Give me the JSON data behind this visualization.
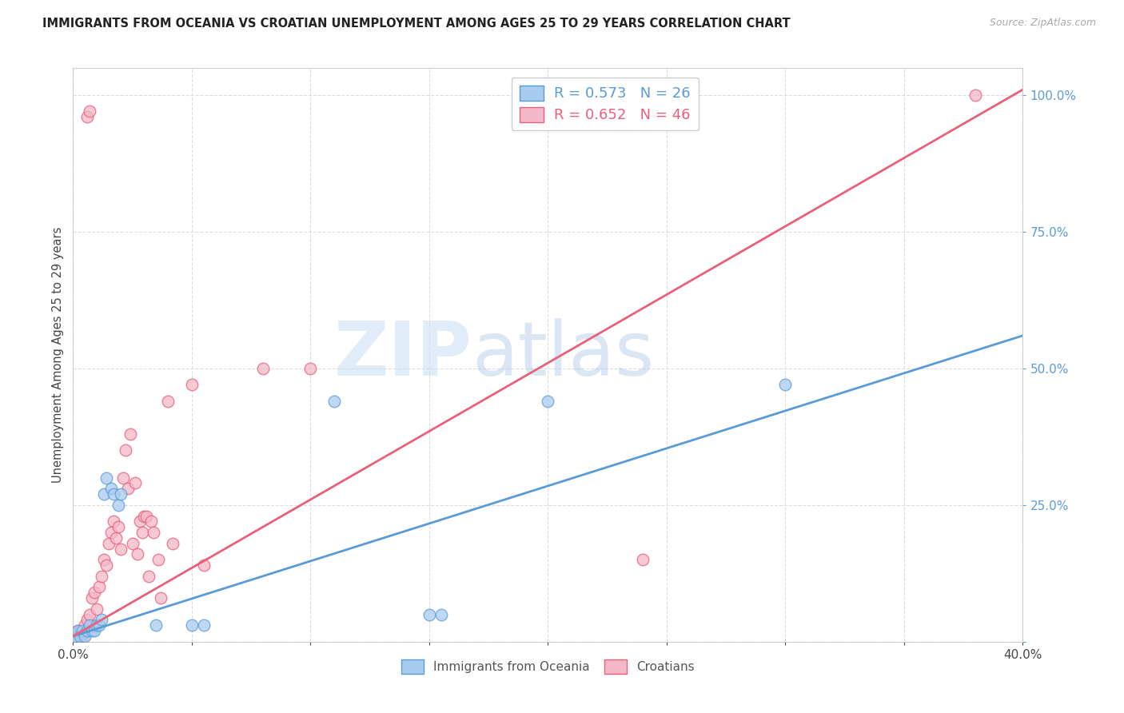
{
  "title": "IMMIGRANTS FROM OCEANIA VS CROATIAN UNEMPLOYMENT AMONG AGES 25 TO 29 YEARS CORRELATION CHART",
  "source": "Source: ZipAtlas.com",
  "ylabel": "Unemployment Among Ages 25 to 29 years",
  "xlim": [
    0.0,
    0.4
  ],
  "ylim": [
    0.0,
    1.05
  ],
  "ytick_vals": [
    0.0,
    0.25,
    0.5,
    0.75,
    1.0
  ],
  "ytick_labels": [
    "",
    "25.0%",
    "50.0%",
    "75.0%",
    "100.0%"
  ],
  "xtick_vals": [
    0.0,
    0.05,
    0.1,
    0.15,
    0.2,
    0.25,
    0.3,
    0.35,
    0.4
  ],
  "xtick_labels": [
    "0.0%",
    "",
    "",
    "",
    "",
    "",
    "",
    "",
    "40.0%"
  ],
  "watermark_zip": "ZIP",
  "watermark_atlas": "atlas",
  "legend_blue_label": "R = 0.573   N = 26",
  "legend_pink_label": "R = 0.652   N = 46",
  "legend_bottom_blue": "Immigrants from Oceania",
  "legend_bottom_pink": "Croatians",
  "blue_fill": "#a8ccf0",
  "pink_fill": "#f5b8c8",
  "blue_edge": "#5b9bd5",
  "pink_edge": "#e8607a",
  "blue_line": "#5b9bd5",
  "pink_line": "#e8607a",
  "blue_scatter": [
    [
      0.001,
      0.01
    ],
    [
      0.002,
      0.02
    ],
    [
      0.003,
      0.01
    ],
    [
      0.004,
      0.02
    ],
    [
      0.005,
      0.01
    ],
    [
      0.006,
      0.02
    ],
    [
      0.007,
      0.03
    ],
    [
      0.008,
      0.02
    ],
    [
      0.009,
      0.02
    ],
    [
      0.01,
      0.03
    ],
    [
      0.011,
      0.03
    ],
    [
      0.012,
      0.04
    ],
    [
      0.013,
      0.27
    ],
    [
      0.014,
      0.3
    ],
    [
      0.016,
      0.28
    ],
    [
      0.017,
      0.27
    ],
    [
      0.019,
      0.25
    ],
    [
      0.02,
      0.27
    ],
    [
      0.035,
      0.03
    ],
    [
      0.05,
      0.03
    ],
    [
      0.055,
      0.03
    ],
    [
      0.11,
      0.44
    ],
    [
      0.15,
      0.05
    ],
    [
      0.155,
      0.05
    ],
    [
      0.2,
      0.44
    ],
    [
      0.3,
      0.47
    ]
  ],
  "pink_scatter": [
    [
      0.001,
      0.01
    ],
    [
      0.002,
      0.02
    ],
    [
      0.003,
      0.02
    ],
    [
      0.004,
      0.01
    ],
    [
      0.005,
      0.03
    ],
    [
      0.006,
      0.04
    ],
    [
      0.007,
      0.05
    ],
    [
      0.008,
      0.08
    ],
    [
      0.009,
      0.09
    ],
    [
      0.01,
      0.06
    ],
    [
      0.011,
      0.1
    ],
    [
      0.012,
      0.12
    ],
    [
      0.013,
      0.15
    ],
    [
      0.014,
      0.14
    ],
    [
      0.015,
      0.18
    ],
    [
      0.016,
      0.2
    ],
    [
      0.017,
      0.22
    ],
    [
      0.018,
      0.19
    ],
    [
      0.019,
      0.21
    ],
    [
      0.02,
      0.17
    ],
    [
      0.021,
      0.3
    ],
    [
      0.022,
      0.35
    ],
    [
      0.023,
      0.28
    ],
    [
      0.024,
      0.38
    ],
    [
      0.025,
      0.18
    ],
    [
      0.026,
      0.29
    ],
    [
      0.027,
      0.16
    ],
    [
      0.028,
      0.22
    ],
    [
      0.029,
      0.2
    ],
    [
      0.03,
      0.23
    ],
    [
      0.031,
      0.23
    ],
    [
      0.032,
      0.12
    ],
    [
      0.033,
      0.22
    ],
    [
      0.034,
      0.2
    ],
    [
      0.036,
      0.15
    ],
    [
      0.037,
      0.08
    ],
    [
      0.04,
      0.44
    ],
    [
      0.042,
      0.18
    ],
    [
      0.05,
      0.47
    ],
    [
      0.006,
      0.96
    ],
    [
      0.007,
      0.97
    ],
    [
      0.24,
      0.15
    ],
    [
      0.38,
      1.0
    ],
    [
      0.055,
      0.14
    ],
    [
      0.08,
      0.5
    ],
    [
      0.1,
      0.5
    ]
  ],
  "blue_trend": [
    0.0,
    0.01,
    0.4,
    0.56
  ],
  "pink_trend": [
    0.0,
    0.01,
    0.4,
    1.01
  ],
  "background_color": "#ffffff",
  "grid_color": "#dddddd"
}
